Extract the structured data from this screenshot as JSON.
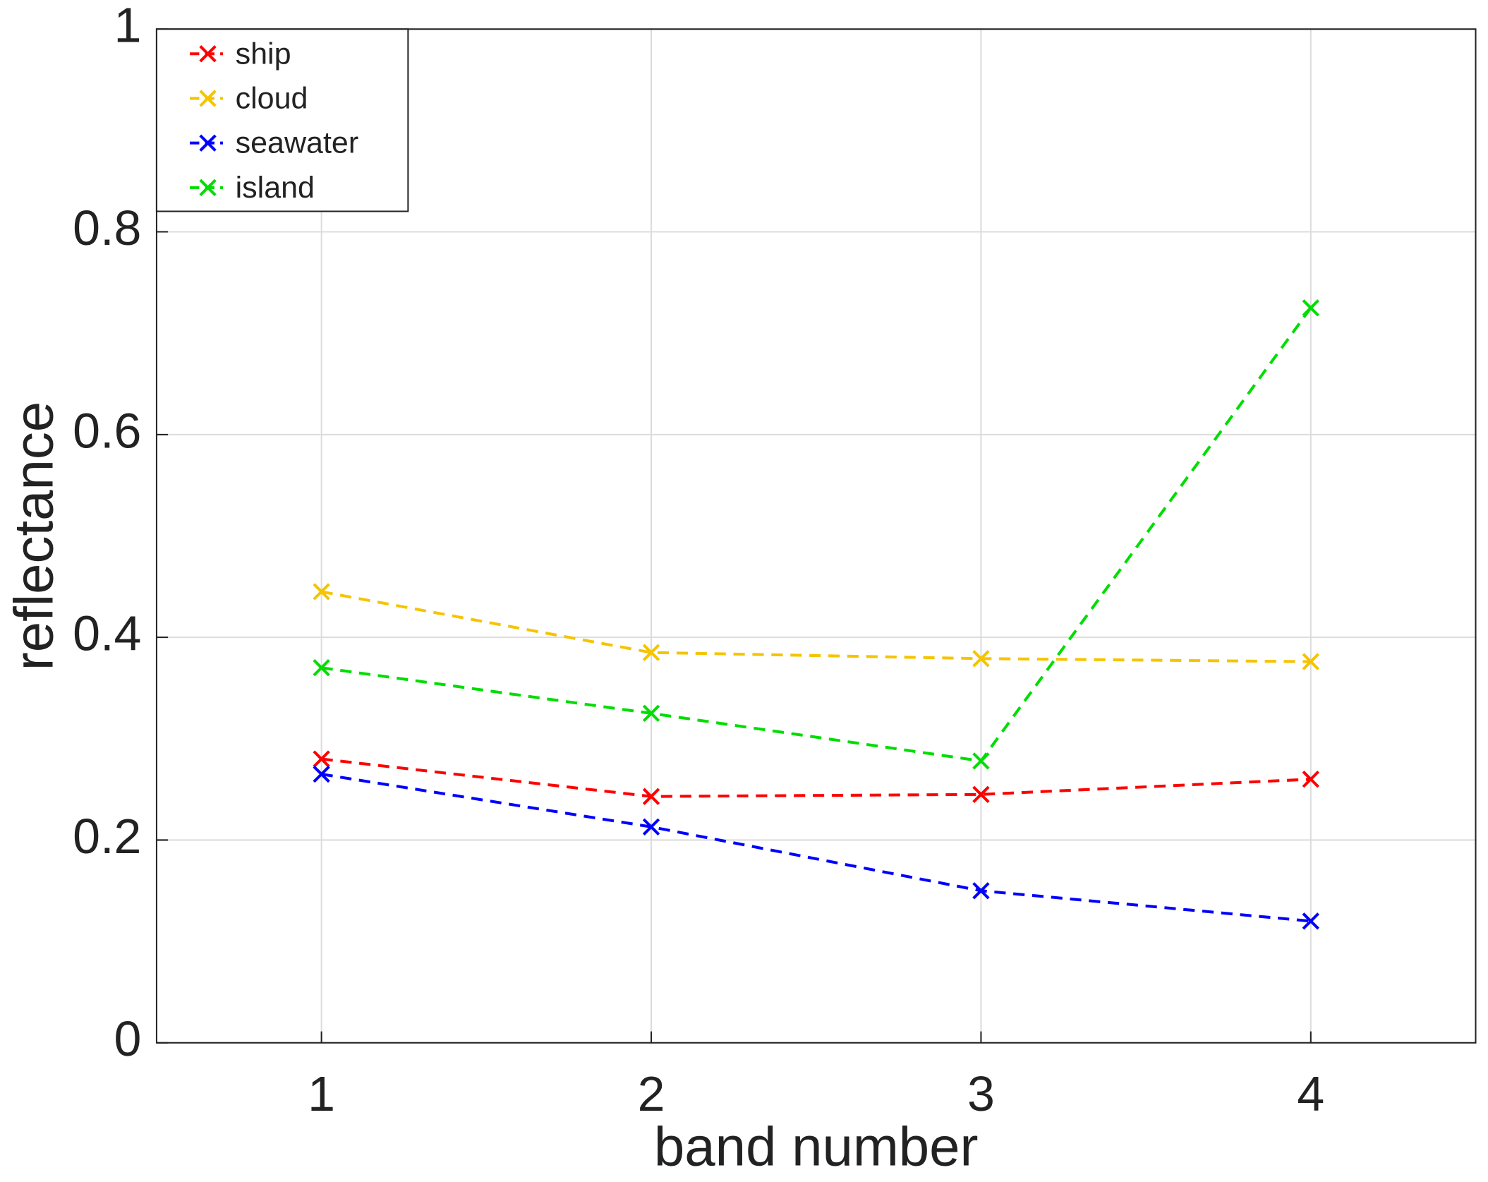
{
  "chart_data": {
    "type": "line",
    "xlabel": "band number",
    "ylabel": "reflectance",
    "x": [
      1,
      2,
      3,
      4
    ],
    "series": [
      {
        "name": "ship",
        "color": "#ff0000",
        "values": [
          0.28,
          0.243,
          0.245,
          0.26
        ]
      },
      {
        "name": "cloud",
        "color": "#f5c400",
        "values": [
          0.445,
          0.385,
          0.379,
          0.376
        ]
      },
      {
        "name": "seawater",
        "color": "#0000ff",
        "values": [
          0.265,
          0.213,
          0.15,
          0.12
        ]
      },
      {
        "name": "island",
        "color": "#00dd00",
        "values": [
          0.37,
          0.325,
          0.278,
          0.725
        ]
      }
    ],
    "xlim": [
      0.5,
      4.5
    ],
    "ylim": [
      0,
      1
    ],
    "xticks": [
      1,
      2,
      3,
      4
    ],
    "yticks": [
      0,
      0.2,
      0.4,
      0.6,
      0.8,
      1
    ],
    "grid": true,
    "legend": "upper left"
  }
}
